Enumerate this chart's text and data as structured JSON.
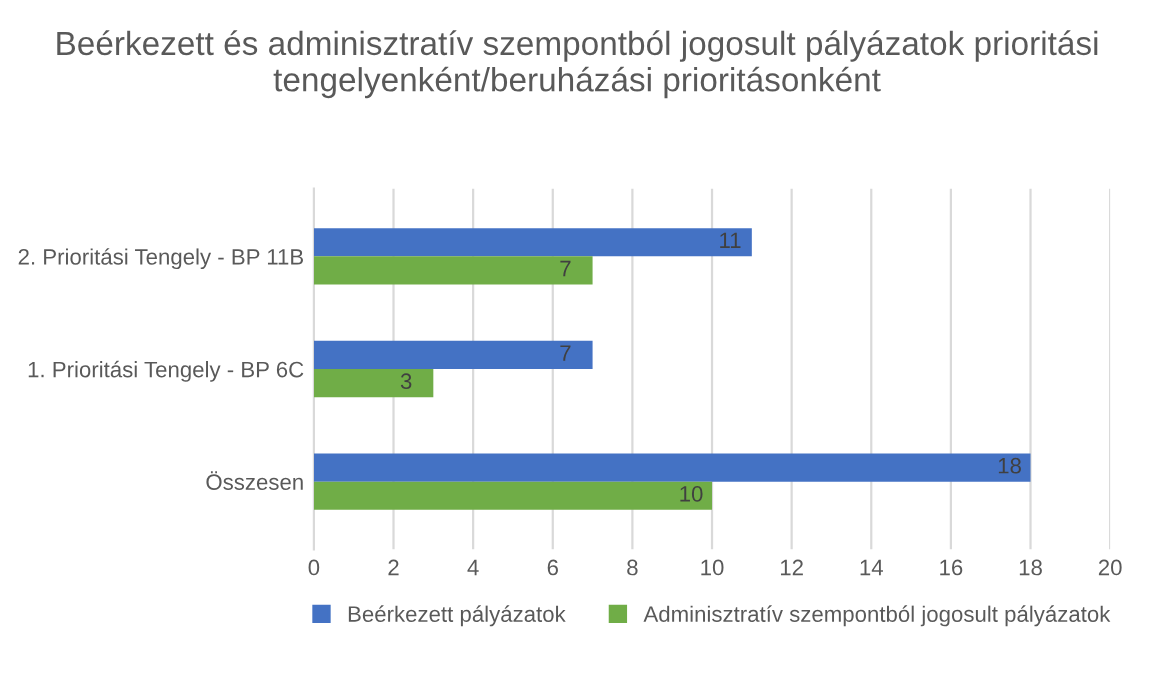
{
  "chart_data": {
    "type": "bar",
    "orientation": "horizontal",
    "title": "Beérkezett és adminisztratív szempontból jogosult pályázatok prioritási tengelyenként/beruházási prioritásonként",
    "categories": [
      "2. Prioritási Tengely - BP 11B",
      "1. Prioritási Tengely - BP 6C",
      "Összesen"
    ],
    "series": [
      {
        "name": "Beérkezett pályázatok",
        "color": "#4472c4",
        "values": [
          11,
          7,
          18
        ]
      },
      {
        "name": "Adminisztratív szempontból jogosult pályázatok",
        "color": "#70ad47",
        "values": [
          7,
          3,
          10
        ]
      }
    ],
    "xlim": [
      0,
      20
    ],
    "xticks": [
      0,
      2,
      4,
      6,
      8,
      10,
      12,
      14,
      16,
      18,
      20
    ],
    "grid": "x",
    "legend": "bottom",
    "data_labels": true
  }
}
